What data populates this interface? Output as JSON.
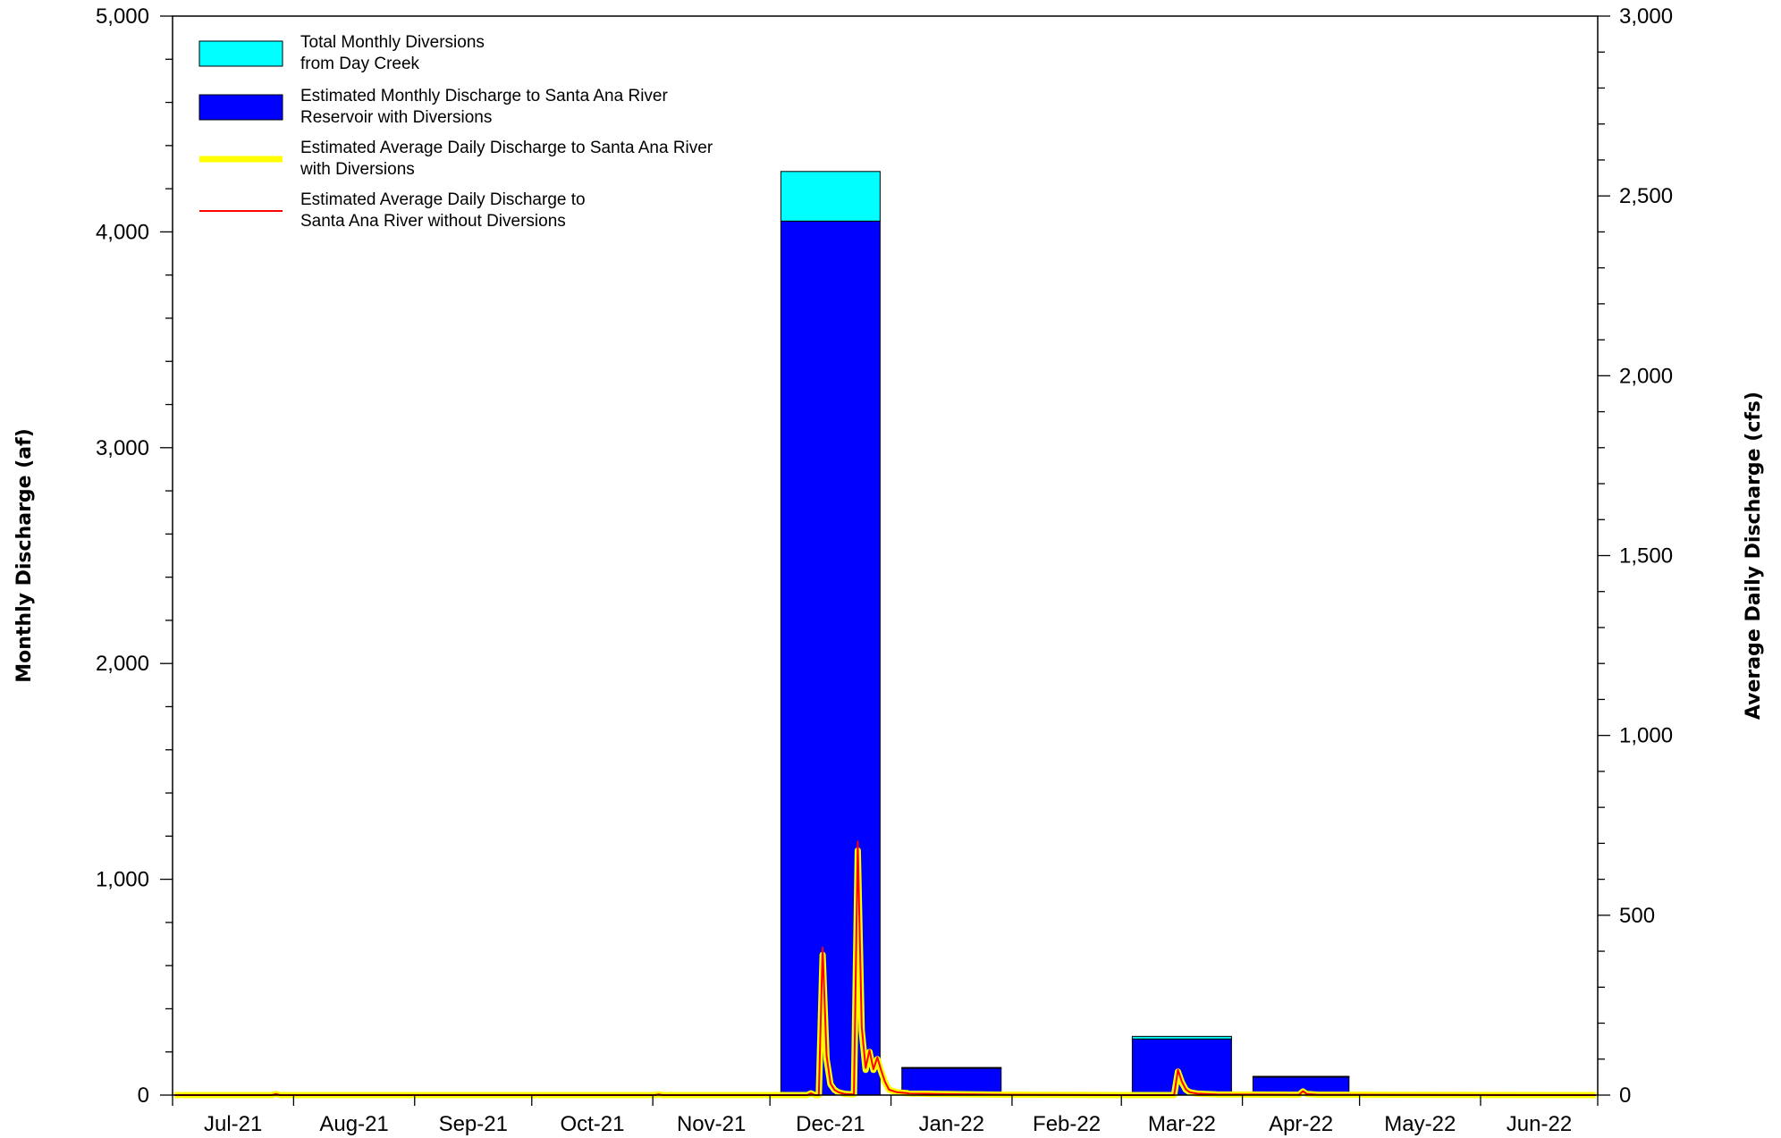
{
  "chart_data": {
    "type": "bar",
    "left_axis": {
      "label": "Monthly Discharge (af)",
      "range": [
        0,
        5000
      ],
      "ticks": [
        0,
        1000,
        2000,
        3000,
        4000,
        5000
      ],
      "tick_labels": [
        "0",
        "1,000",
        "2,000",
        "3,000",
        "4,000",
        "5,000"
      ],
      "minor_step": 200
    },
    "right_axis": {
      "label": "Average Daily Discharge (cfs)",
      "range": [
        0,
        3000
      ],
      "ticks": [
        0,
        500,
        1000,
        1500,
        2000,
        2500,
        3000
      ],
      "tick_labels": [
        "0",
        "500",
        "1,000",
        "1,500",
        "2,000",
        "2,500",
        "3,000"
      ],
      "minor_step": 100
    },
    "categories": [
      "Jul-21",
      "Aug-21",
      "Sep-21",
      "Oct-21",
      "Nov-21",
      "Dec-21",
      "Jan-22",
      "Feb-22",
      "Mar-22",
      "Apr-22",
      "May-22",
      "Jun-22"
    ],
    "series": [
      {
        "name": "Estimated Monthly Discharge to Santa Ana River Reservoir with Diversions",
        "kind": "stacked-bar",
        "color": "#0000ff",
        "values": [
          0,
          0,
          0,
          0,
          0,
          4050,
          125,
          0,
          260,
          85,
          0,
          0
        ]
      },
      {
        "name": "Total Monthly Diversions from Day Creek",
        "kind": "stacked-bar",
        "color": "#00ffff",
        "values": [
          0,
          0,
          0,
          0,
          0,
          230,
          3,
          0,
          12,
          2,
          0,
          0
        ]
      },
      {
        "name": "Estimated Average Daily Discharge to Santa Ana River with Diversions",
        "kind": "line",
        "axis": "right",
        "color": "#ffff00",
        "points": [
          [
            "2021-07-01",
            0
          ],
          [
            "2021-07-26",
            0
          ],
          [
            "2021-07-27",
            3
          ],
          [
            "2021-07-28",
            0
          ],
          [
            "2021-11-01",
            0
          ],
          [
            "2021-11-02",
            2
          ],
          [
            "2021-11-03",
            0
          ],
          [
            "2021-12-10",
            0
          ],
          [
            "2021-12-11",
            5
          ],
          [
            "2021-12-12",
            0
          ],
          [
            "2021-12-13",
            0
          ],
          [
            "2021-12-14",
            390
          ],
          [
            "2021-12-15",
            100
          ],
          [
            "2021-12-16",
            30
          ],
          [
            "2021-12-17",
            15
          ],
          [
            "2021-12-18",
            8
          ],
          [
            "2021-12-19",
            5
          ],
          [
            "2021-12-20",
            3
          ],
          [
            "2021-12-22",
            2
          ],
          [
            "2021-12-23",
            680
          ],
          [
            "2021-12-24",
            180
          ],
          [
            "2021-12-25",
            70
          ],
          [
            "2021-12-26",
            120
          ],
          [
            "2021-12-27",
            70
          ],
          [
            "2021-12-28",
            100
          ],
          [
            "2021-12-29",
            65
          ],
          [
            "2021-12-30",
            35
          ],
          [
            "2021-12-31",
            15
          ],
          [
            "2022-01-02",
            8
          ],
          [
            "2022-01-05",
            5
          ],
          [
            "2022-01-12",
            3
          ],
          [
            "2022-01-31",
            1
          ],
          [
            "2022-03-01",
            0
          ],
          [
            "2022-03-14",
            0
          ],
          [
            "2022-03-15",
            65
          ],
          [
            "2022-03-16",
            35
          ],
          [
            "2022-03-17",
            15
          ],
          [
            "2022-03-18",
            8
          ],
          [
            "2022-03-20",
            4
          ],
          [
            "2022-03-25",
            2
          ],
          [
            "2022-04-15",
            1
          ],
          [
            "2022-04-16",
            10
          ],
          [
            "2022-04-17",
            3
          ],
          [
            "2022-04-20",
            1
          ],
          [
            "2022-06-30",
            0
          ]
        ]
      },
      {
        "name": "Estimated Average Daily Discharge to Santa Ana River without Diversions",
        "kind": "line",
        "axis": "right",
        "color": "#ff0000",
        "points": [
          [
            "2021-07-01",
            0
          ],
          [
            "2021-07-26",
            0
          ],
          [
            "2021-07-27",
            3
          ],
          [
            "2021-07-28",
            0
          ],
          [
            "2021-11-01",
            0
          ],
          [
            "2021-11-02",
            2
          ],
          [
            "2021-11-03",
            0
          ],
          [
            "2021-12-10",
            0
          ],
          [
            "2021-12-11",
            5
          ],
          [
            "2021-12-12",
            0
          ],
          [
            "2021-12-13",
            0
          ],
          [
            "2021-12-14",
            410
          ],
          [
            "2021-12-15",
            110
          ],
          [
            "2021-12-16",
            32
          ],
          [
            "2021-12-17",
            15
          ],
          [
            "2021-12-18",
            8
          ],
          [
            "2021-12-19",
            5
          ],
          [
            "2021-12-20",
            3
          ],
          [
            "2021-12-22",
            2
          ],
          [
            "2021-12-23",
            705
          ],
          [
            "2021-12-24",
            190
          ],
          [
            "2021-12-25",
            75
          ],
          [
            "2021-12-26",
            125
          ],
          [
            "2021-12-27",
            72
          ],
          [
            "2021-12-28",
            105
          ],
          [
            "2021-12-29",
            68
          ],
          [
            "2021-12-30",
            36
          ],
          [
            "2021-12-31",
            15
          ],
          [
            "2022-01-02",
            8
          ],
          [
            "2022-01-05",
            5
          ],
          [
            "2022-01-12",
            3
          ],
          [
            "2022-01-31",
            1
          ],
          [
            "2022-03-01",
            0
          ],
          [
            "2022-03-14",
            0
          ],
          [
            "2022-03-15",
            70
          ],
          [
            "2022-03-16",
            37
          ],
          [
            "2022-03-17",
            16
          ],
          [
            "2022-03-18",
            8
          ],
          [
            "2022-03-20",
            4
          ],
          [
            "2022-03-25",
            2
          ],
          [
            "2022-04-15",
            1
          ],
          [
            "2022-04-16",
            11
          ],
          [
            "2022-04-17",
            3
          ],
          [
            "2022-04-20",
            1
          ],
          [
            "2022-06-30",
            0
          ]
        ]
      }
    ],
    "legend": {
      "placement": "top-left",
      "entries": [
        {
          "label_lines": [
            "Total Monthly Diversions",
            "from Day Creek"
          ],
          "swatch": "box",
          "color": "#00ffff"
        },
        {
          "label_lines": [
            "Estimated Monthly Discharge to Santa Ana River",
            "Reservoir with Diversions"
          ],
          "swatch": "box",
          "color": "#0000ff"
        },
        {
          "label_lines": [
            "Estimated Average Daily Discharge to Santa Ana River",
            "with Diversions"
          ],
          "swatch": "thick-line",
          "color": "#ffff00"
        },
        {
          "label_lines": [
            "Estimated Average Daily Discharge to",
            "Santa Ana River without Diversions"
          ],
          "swatch": "thin-line",
          "color": "#ff0000"
        }
      ]
    },
    "grid": false
  }
}
